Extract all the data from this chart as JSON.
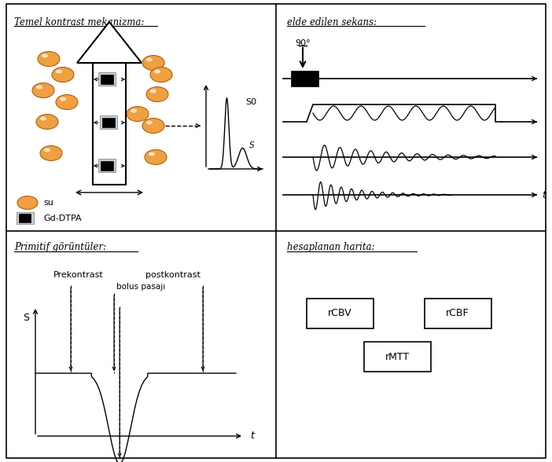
{
  "bg_color": "#ffffff",
  "orange_color": "#F0A040",
  "q1_title": "Temel kontrast mekanizma:",
  "q2_title": "elde edilen sekans:",
  "q3_title": "Primitif görüntüler:",
  "q4_title": "hesaplanan harita:",
  "q2_degree": "90°",
  "q3_label_s": "S",
  "q3_label_t": "t",
  "q3_prekontrast": "Prekontrast",
  "q3_postkontrast": "postkontrast",
  "q3_bolus": "bolus pasajı",
  "q1_su": "su",
  "q1_gdDTPA": "Gd-DTPA",
  "q1_S0": "S0",
  "q1_S": "S",
  "q4_rcbv": "rCBV",
  "q4_rcbf": "rCBF",
  "q4_rmtt": "rMTT",
  "q2_t": "t"
}
